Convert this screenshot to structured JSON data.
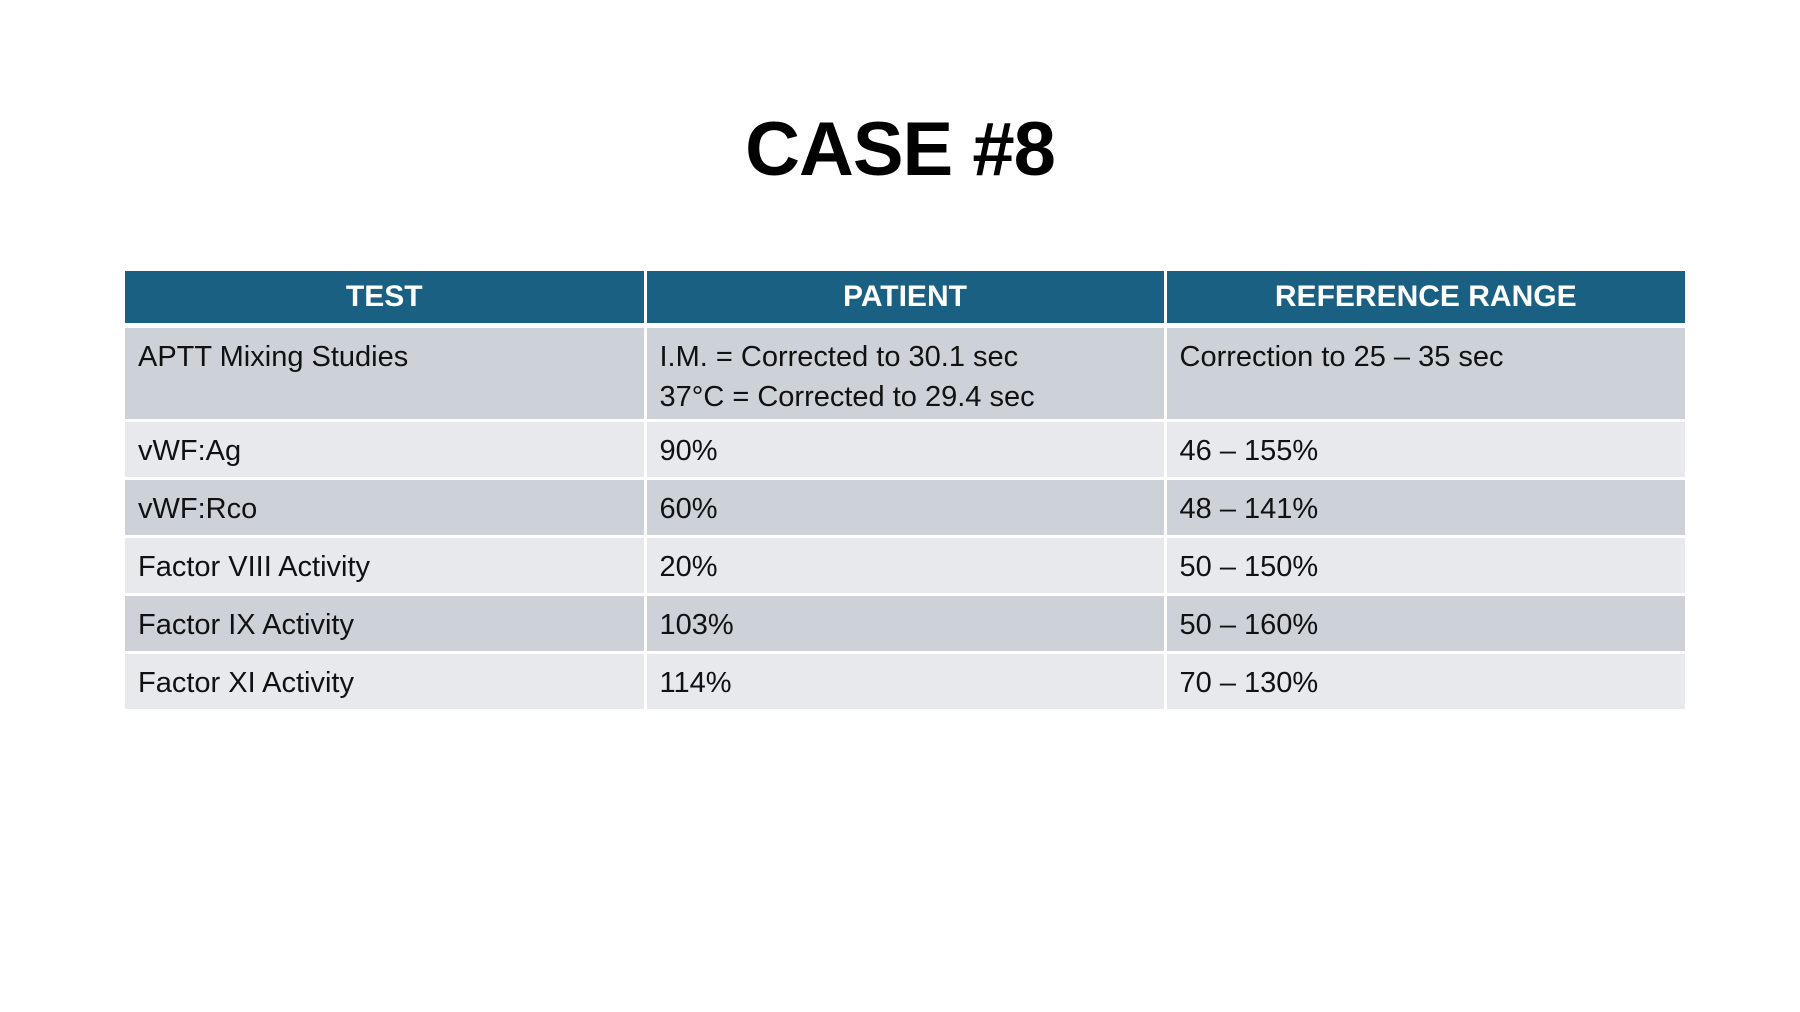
{
  "title": "CASE #8",
  "table": {
    "headers": [
      "TEST",
      "PATIENT",
      "REFERENCE RANGE"
    ],
    "rows": [
      {
        "test": "APTT Mixing Studies",
        "patient": [
          "I.M. = Corrected to 30.1 sec",
          "37°C = Corrected to 29.4 sec"
        ],
        "reference": "Correction to 25 – 35 sec"
      },
      {
        "test": "vWF:Ag",
        "patient": [
          "90%"
        ],
        "reference": "46 – 155%"
      },
      {
        "test": "vWF:Rco",
        "patient": [
          "60%"
        ],
        "reference": "48 – 141%"
      },
      {
        "test": "Factor VIII Activity",
        "patient": [
          "20%"
        ],
        "reference": "50 – 150%"
      },
      {
        "test": "Factor IX Activity",
        "patient": [
          "103%"
        ],
        "reference": "50 – 160%"
      },
      {
        "test": "Factor XI Activity",
        "patient": [
          "114%"
        ],
        "reference": "70 – 130%"
      }
    ]
  },
  "colors": {
    "header_background": "#196083",
    "header_text": "#ffffff",
    "row_dark": "#cdd2d8",
    "row_light": "#e7e9ec"
  }
}
